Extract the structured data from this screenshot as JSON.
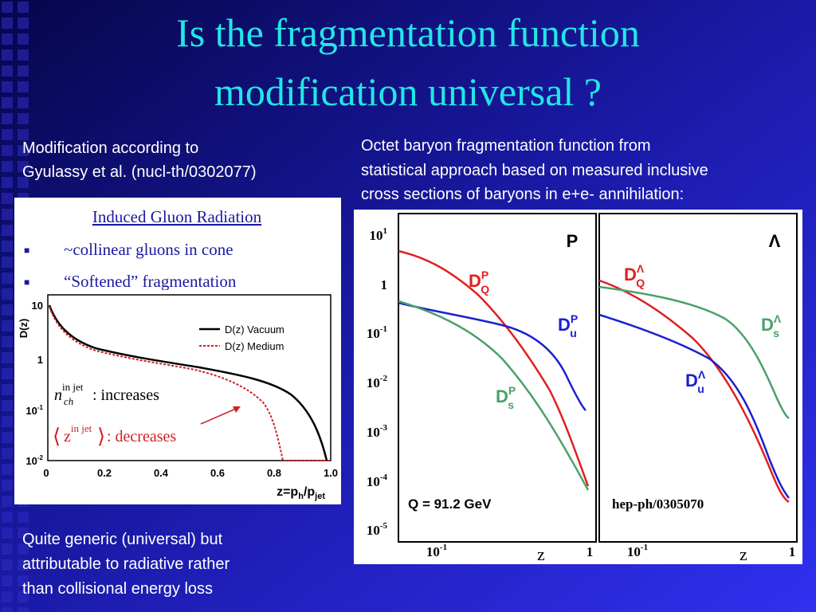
{
  "title": [
    "Is the fragmentation function",
    "modification universal ?"
  ],
  "left_note": [
    "Modification according to",
    "Gyulassy et al. (nucl-th/0302077)"
  ],
  "right_note": [
    "Octet baryon fragmentation function from",
    "statistical approach based on measured inclusive",
    "cross sections of baryons in e+e- annihilation:"
  ],
  "box": {
    "heading": "Induced Gluon Radiation",
    "bullets": [
      "~collinear gluons in cone",
      "“Softened” fragmentation"
    ]
  },
  "left_figure": {
    "ylabel": "D(z)",
    "xlabel": {
      "main": "z=p",
      "sub1": "h",
      "sep": "/p",
      "sub2": "jet"
    },
    "legend": [
      "D(z) Vacuum",
      "D(z) Medium"
    ],
    "xticks": [
      "0",
      "0.2",
      "0.4",
      "0.6",
      "0.8",
      "1.0"
    ],
    "yticks": [
      {
        "base": "10",
        "exp": ""
      },
      {
        "base": "1",
        "exp": ""
      },
      {
        "base": "10",
        "exp": "-1"
      },
      {
        "base": "10",
        "exp": "-2"
      }
    ],
    "annotation1": {
      "symbol": "n",
      "sup": "in jet",
      "sub": "ch",
      "text": ":  increases"
    },
    "annotation2": {
      "symbol": "z",
      "sup": "in jet",
      "text": ":  decreases"
    }
  },
  "bottom_note": [
    "Quite generic (universal) but",
    "attributable to radiative rather",
    "than collisional energy loss"
  ],
  "right_figure": {
    "yticks": [
      {
        "base": "10",
        "exp": "1"
      },
      {
        "base": "1",
        "exp": ""
      },
      {
        "base": "10",
        "exp": "-1"
      },
      {
        "base": "10",
        "exp": "-2"
      },
      {
        "base": "10",
        "exp": "-3"
      },
      {
        "base": "10",
        "exp": "-4"
      },
      {
        "base": "10",
        "exp": "-5"
      }
    ],
    "xticks": [
      {
        "base": "10",
        "exp": "-1"
      },
      {
        "base": "1",
        "exp": ""
      }
    ],
    "xlabel": "z",
    "panels": [
      {
        "tag": "P",
        "note": "Q = 91.2 GeV",
        "curves": [
          {
            "d": "D",
            "sup": "P",
            "sub": "Q"
          },
          {
            "d": "D",
            "sup": "P",
            "sub": "u"
          },
          {
            "d": "D",
            "sup": "P",
            "sub": "s"
          }
        ]
      },
      {
        "tag": "Λ",
        "note": "hep-ph/0305070",
        "curves": [
          {
            "d": "D",
            "sup": "Λ",
            "sub": "Q"
          },
          {
            "d": "D",
            "sup": "Λ",
            "sub": "s"
          },
          {
            "d": "D",
            "sup": "Λ",
            "sub": "u"
          }
        ]
      }
    ]
  }
}
